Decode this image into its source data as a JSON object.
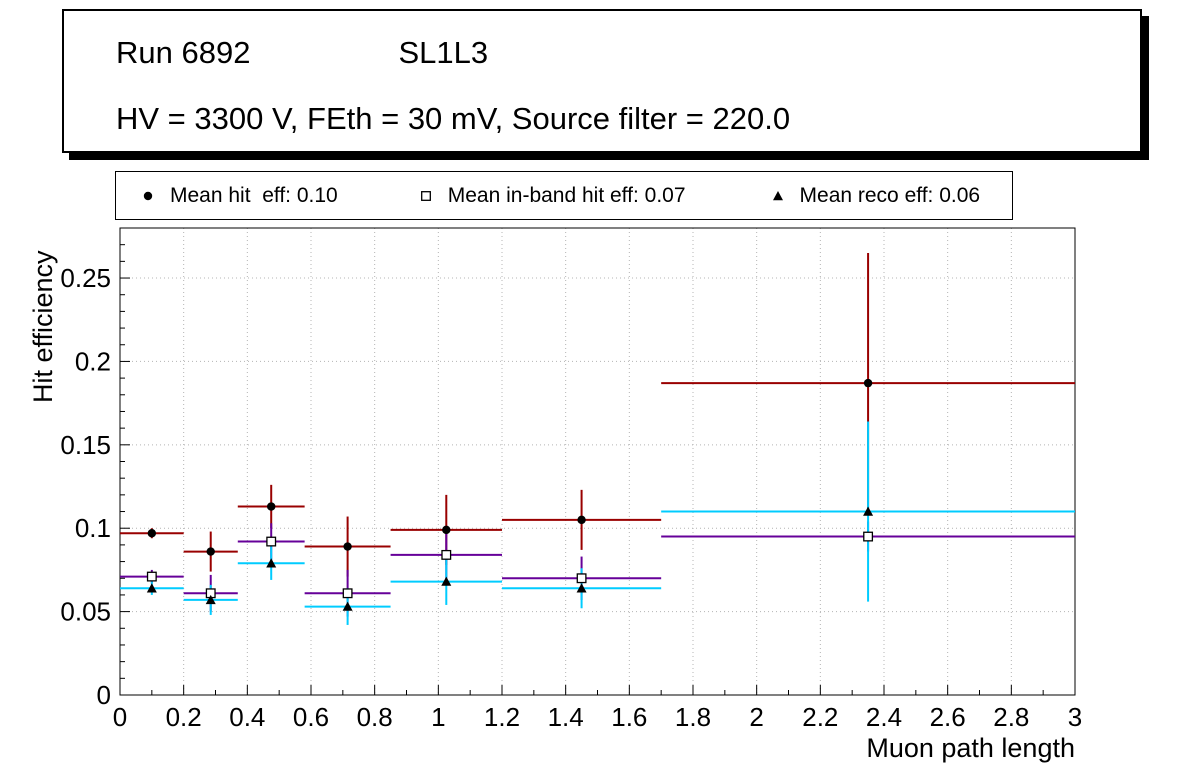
{
  "window": {
    "background": "#ffffff"
  },
  "title_box": {
    "run": "Run 6892",
    "chamber": "SL1L3",
    "conditions": "HV = 3300 V, FEth = 30 mV, Source filter = 220.0"
  },
  "legend": {
    "entries": [
      {
        "marker": "filled-circle",
        "label": "Mean hit  eff: 0.10"
      },
      {
        "marker": "open-square",
        "label": "Mean in-band hit eff: 0.07"
      },
      {
        "marker": "filled-triangle",
        "label": "Mean reco eff: 0.06"
      }
    ]
  },
  "chart_data": {
    "type": "scatter",
    "title": "",
    "xlabel": "Muon path length",
    "ylabel": "Hit efficiency",
    "xlim": [
      0,
      3
    ],
    "ylim": [
      0,
      0.28
    ],
    "grid": true,
    "x_ticks": {
      "values": [
        0,
        0.2,
        0.4,
        0.6,
        0.8,
        1,
        1.2,
        1.4,
        1.6,
        1.8,
        2,
        2.2,
        2.4,
        2.6,
        2.8,
        3
      ],
      "labels": [
        "0",
        "0.2",
        "0.4",
        "0.6",
        "0.8",
        "1",
        "1.2",
        "1.4",
        "1.6",
        "1.8",
        "2",
        "2.2",
        "2.4",
        "2.6",
        "2.8",
        "3"
      ]
    },
    "y_ticks": {
      "values": [
        0,
        0.05,
        0.1,
        0.15,
        0.2,
        0.25
      ],
      "labels": [
        "0",
        "0.05",
        "0.1",
        "0.15",
        "0.2",
        "0.25"
      ]
    },
    "series": [
      {
        "id": "hit-eff",
        "name": "Mean hit eff",
        "mean": 0.1,
        "color": "#990000",
        "marker": "filled-circle",
        "marker_color": "#000000",
        "points": [
          {
            "x": 0.1,
            "xlow": 0,
            "xhigh": 0.2,
            "y": 0.097,
            "ylow": 0.094,
            "yhigh": 0.1
          },
          {
            "x": 0.285,
            "xlow": 0.2,
            "xhigh": 0.37,
            "y": 0.086,
            "ylow": 0.074,
            "yhigh": 0.098
          },
          {
            "x": 0.475,
            "xlow": 0.37,
            "xhigh": 0.58,
            "y": 0.113,
            "ylow": 0.1,
            "yhigh": 0.126
          },
          {
            "x": 0.715,
            "xlow": 0.58,
            "xhigh": 0.85,
            "y": 0.089,
            "ylow": 0.071,
            "yhigh": 0.107
          },
          {
            "x": 1.025,
            "xlow": 0.85,
            "xhigh": 1.2,
            "y": 0.099,
            "ylow": 0.078,
            "yhigh": 0.12
          },
          {
            "x": 1.45,
            "xlow": 1.2,
            "xhigh": 1.7,
            "y": 0.105,
            "ylow": 0.087,
            "yhigh": 0.123
          },
          {
            "x": 2.35,
            "xlow": 1.7,
            "xhigh": 3.0,
            "y": 0.187,
            "ylow": 0.11,
            "yhigh": 0.265
          }
        ]
      },
      {
        "id": "inband-hit-eff",
        "name": "Mean in-band hit eff",
        "mean": 0.07,
        "color": "#660099",
        "marker": "open-square",
        "marker_color": "#000000",
        "points": [
          {
            "x": 0.1,
            "xlow": 0,
            "xhigh": 0.2,
            "y": 0.071,
            "ylow": 0.067,
            "yhigh": 0.075
          },
          {
            "x": 0.285,
            "xlow": 0.2,
            "xhigh": 0.37,
            "y": 0.061,
            "ylow": 0.05,
            "yhigh": 0.072
          },
          {
            "x": 0.475,
            "xlow": 0.37,
            "xhigh": 0.58,
            "y": 0.092,
            "ylow": 0.081,
            "yhigh": 0.103
          },
          {
            "x": 0.715,
            "xlow": 0.58,
            "xhigh": 0.85,
            "y": 0.061,
            "ylow": 0.047,
            "yhigh": 0.075
          },
          {
            "x": 1.025,
            "xlow": 0.85,
            "xhigh": 1.2,
            "y": 0.084,
            "ylow": 0.067,
            "yhigh": 0.101
          },
          {
            "x": 1.45,
            "xlow": 1.2,
            "xhigh": 1.7,
            "y": 0.07,
            "ylow": 0.057,
            "yhigh": 0.083
          },
          {
            "x": 2.35,
            "xlow": 1.7,
            "xhigh": 3.0,
            "y": 0.095,
            "ylow": 0.086,
            "yhigh": 0.104
          }
        ]
      },
      {
        "id": "reco-eff",
        "name": "Mean reco eff",
        "mean": 0.06,
        "color": "#00ccff",
        "marker": "filled-triangle",
        "marker_color": "#000000",
        "points": [
          {
            "x": 0.1,
            "xlow": 0,
            "xhigh": 0.2,
            "y": 0.064,
            "ylow": 0.06,
            "yhigh": 0.068
          },
          {
            "x": 0.285,
            "xlow": 0.2,
            "xhigh": 0.37,
            "y": 0.057,
            "ylow": 0.048,
            "yhigh": 0.066
          },
          {
            "x": 0.475,
            "xlow": 0.37,
            "xhigh": 0.58,
            "y": 0.079,
            "ylow": 0.069,
            "yhigh": 0.089
          },
          {
            "x": 0.715,
            "xlow": 0.58,
            "xhigh": 0.85,
            "y": 0.053,
            "ylow": 0.042,
            "yhigh": 0.064
          },
          {
            "x": 1.025,
            "xlow": 0.85,
            "xhigh": 1.2,
            "y": 0.068,
            "ylow": 0.054,
            "yhigh": 0.082
          },
          {
            "x": 1.45,
            "xlow": 1.2,
            "xhigh": 1.7,
            "y": 0.064,
            "ylow": 0.052,
            "yhigh": 0.076
          },
          {
            "x": 2.35,
            "xlow": 1.7,
            "xhigh": 3.0,
            "y": 0.11,
            "ylow": 0.056,
            "yhigh": 0.164
          }
        ]
      }
    ]
  }
}
